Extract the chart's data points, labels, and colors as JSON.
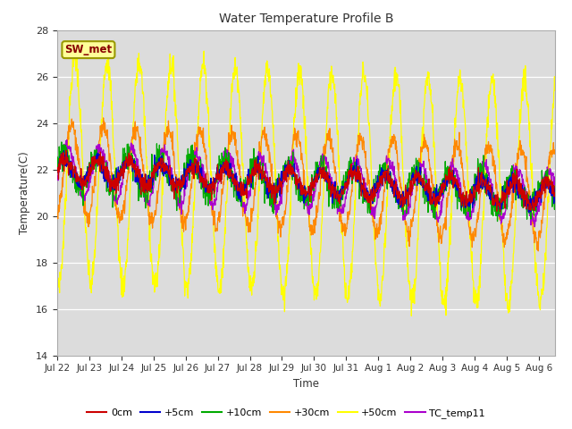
{
  "title": "Water Temperature Profile B",
  "xlabel": "Time",
  "ylabel": "Temperature(C)",
  "ylim": [
    14,
    28
  ],
  "yticks": [
    14,
    16,
    18,
    20,
    22,
    24,
    26,
    28
  ],
  "bg_color": "#dcdcdc",
  "series_colors": {
    "0cm": "#cc0000",
    "+5cm": "#0000cc",
    "+10cm": "#00aa00",
    "+30cm": "#ff8800",
    "+50cm": "#ffff00",
    "TC_temp11": "#aa00cc"
  },
  "sw_met_box_color": "#ffff99",
  "sw_met_text_color": "#880000",
  "n_points": 1500,
  "end_day": 15.5,
  "tick_labels": [
    "Jul 22",
    "Jul 23",
    "Jul 24",
    "Jul 25",
    "Jul 26",
    "Jul 27",
    "Jul 28",
    "Jul 29",
    "Jul 30",
    "Jul 31",
    "Aug 1",
    "Aug 2",
    "Aug 3",
    "Aug 4",
    "Aug 5",
    "Aug 6"
  ]
}
